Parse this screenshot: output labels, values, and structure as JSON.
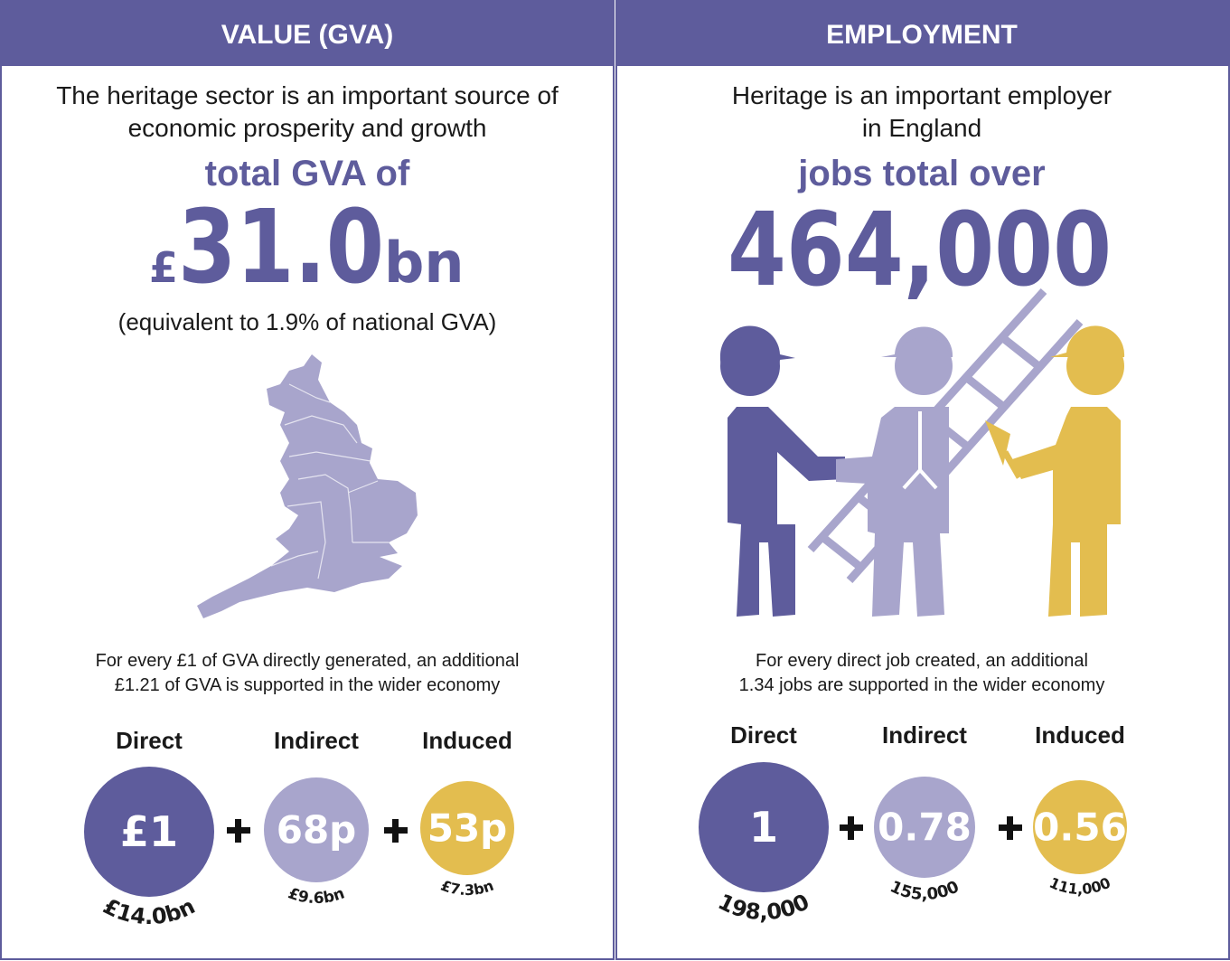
{
  "panels": [
    {
      "header": "VALUE (GVA)",
      "intro": [
        "The heritage sector is an important source of",
        "economic prosperity and growth"
      ],
      "highlight": "total GVA of",
      "headline": {
        "prefix": "£",
        "number": "31.0",
        "suffix": "bn"
      },
      "note": "(equivalent to 1.9% of national GVA)",
      "multiplier": [
        "For every £1 of GVA directly generated, an additional",
        "£1.21 of GVA is supported in the wider economy"
      ],
      "items": [
        {
          "label": "Direct",
          "value": "£1",
          "total": "£14.0bn"
        },
        {
          "label": "Indirect",
          "value": "68p",
          "total": "£9.6bn"
        },
        {
          "label": "Induced",
          "value": "53p",
          "total": "£7.3bn"
        }
      ]
    },
    {
      "header": "EMPLOYMENT",
      "intro": [
        "Heritage is an important employer",
        "in England"
      ],
      "highlight": "jobs total over",
      "headline": {
        "number": "464,000"
      },
      "multiplier": [
        "For every direct job created, an additional",
        "1.34 jobs are supported in the wider economy"
      ],
      "items": [
        {
          "label": "Direct",
          "value": "1",
          "total": "198,000"
        },
        {
          "label": "Indirect",
          "value": "0.78",
          "total": "155,000"
        },
        {
          "label": "Induced",
          "value": "0.56",
          "total": "111,000"
        }
      ]
    }
  ]
}
